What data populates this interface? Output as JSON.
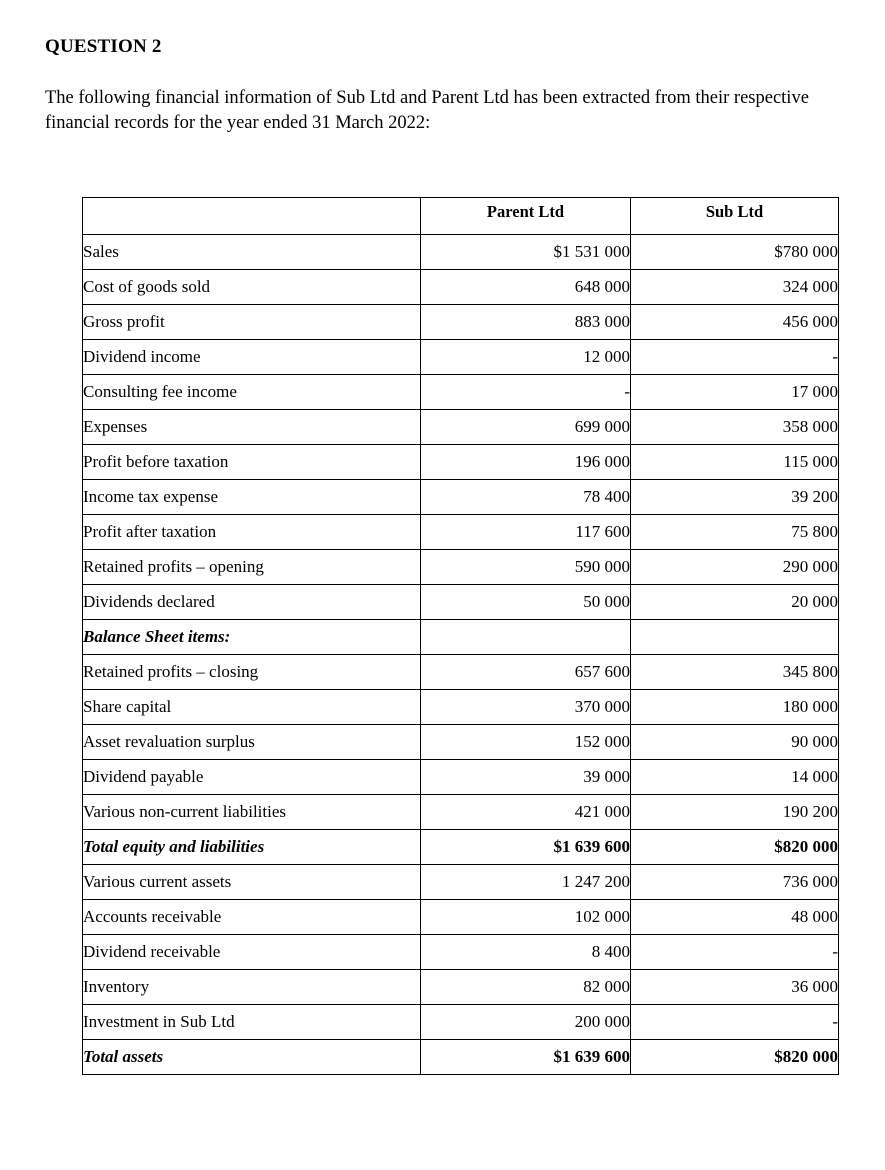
{
  "page": {
    "title": "QUESTION 2",
    "intro": "The following financial information of Sub Ltd and Parent Ltd has been extracted from their respective financial records for the year ended 31 March 2022:"
  },
  "table": {
    "columns": [
      "",
      "Parent Ltd",
      "Sub Ltd"
    ],
    "rows": [
      {
        "label": "Sales",
        "parent": "$1 531 000",
        "sub": "$780 000"
      },
      {
        "label": "Cost of goods sold",
        "parent": "648 000",
        "sub": "324 000"
      },
      {
        "label": "Gross profit",
        "parent": "883 000",
        "sub": "456 000",
        "rule_above": true
      },
      {
        "label": "Dividend income",
        "parent": "12 000",
        "sub": "-"
      },
      {
        "label": "Consulting fee income",
        "parent": "-",
        "sub": "17 000"
      },
      {
        "label": "Expenses",
        "parent": "699 000",
        "sub": "358 000"
      },
      {
        "label": "Profit before taxation",
        "parent": "196 000",
        "sub": "115 000",
        "rule_above": true
      },
      {
        "label": "Income tax expense",
        "parent": "78 400",
        "sub": "39 200"
      },
      {
        "label": "Profit after taxation",
        "parent": "117 600",
        "sub": "75 800",
        "rule_above": true
      },
      {
        "label": "Retained profits – opening",
        "parent": "590 000",
        "sub": "290 000"
      },
      {
        "label": "Dividends declared",
        "parent": "50 000",
        "sub": "20 000"
      },
      {
        "label": "Balance Sheet items:",
        "parent": "",
        "sub": "",
        "section": true
      },
      {
        "label": "Retained profits – closing",
        "parent": "657 600",
        "sub": "345 800"
      },
      {
        "label": "Share capital",
        "parent": "370 000",
        "sub": "180 000"
      },
      {
        "label": "Asset revaluation surplus",
        "parent": "152 000",
        "sub": "90 000"
      },
      {
        "label": "Dividend payable",
        "parent": "39 000",
        "sub": "14 000"
      },
      {
        "label": "Various non-current liabilities",
        "parent": "421 000",
        "sub": "190 200"
      },
      {
        "label": "Total equity and liabilities",
        "parent": "$1 639 600",
        "sub": "$820 000",
        "total": true,
        "rule_above": true,
        "rule_below": true
      },
      {
        "label": "Various current assets",
        "parent": "1 247 200",
        "sub": "736 000"
      },
      {
        "label": "Accounts receivable",
        "parent": "102 000",
        "sub": "48 000"
      },
      {
        "label": "Dividend receivable",
        "parent": "8 400",
        "sub": "-"
      },
      {
        "label": "Inventory",
        "parent": "82 000",
        "sub": "36 000"
      },
      {
        "label": "Investment in Sub Ltd",
        "parent": "200 000",
        "sub": "-"
      },
      {
        "label": "Total assets",
        "parent": "$1 639 600",
        "sub": "$820 000",
        "total": true,
        "rule_above": true,
        "rule_below": true
      }
    ]
  }
}
